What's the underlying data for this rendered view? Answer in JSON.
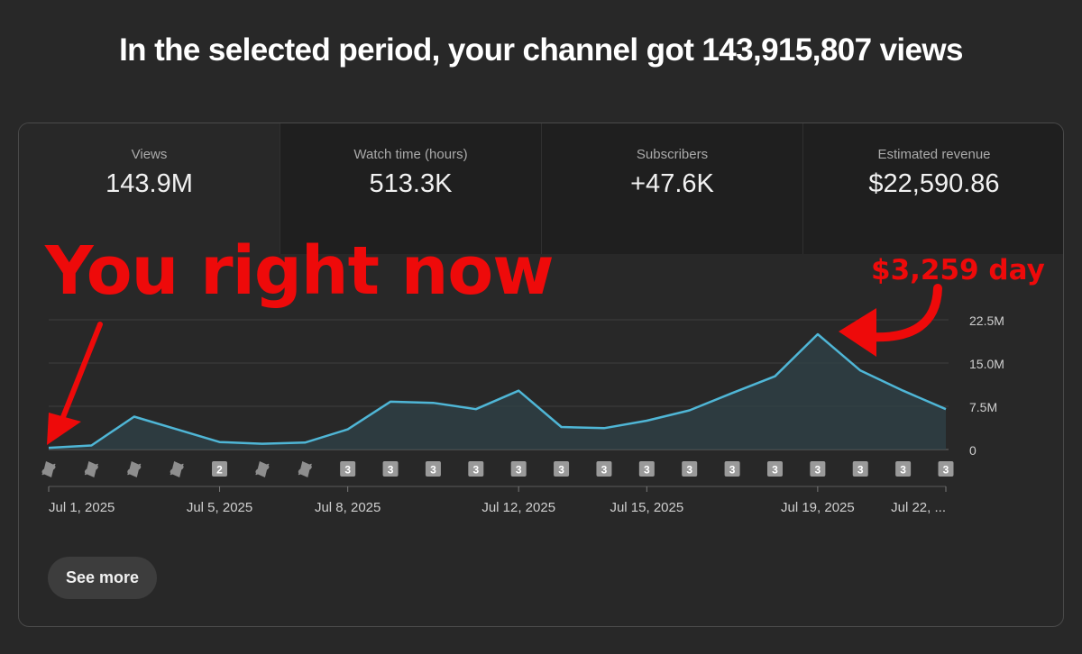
{
  "headline": "In the selected period, your channel got 143,915,807 views",
  "metrics": [
    {
      "label": "Views",
      "value": "143.9M"
    },
    {
      "label": "Watch time (hours)",
      "value": "513.3K"
    },
    {
      "label": "Subscribers",
      "value": "+47.6K"
    },
    {
      "label": "Estimated revenue",
      "value": "$22,590.86"
    }
  ],
  "annotations": {
    "left": "You right now",
    "right": "$3,259 day"
  },
  "see_more": "See more",
  "colors": {
    "line": "#4fb6d6",
    "annotation": "#ee0a0a"
  },
  "chart_data": {
    "type": "area",
    "x": [
      "Jul 1, 2025",
      "Jul 2, 2025",
      "Jul 3, 2025",
      "Jul 4, 2025",
      "Jul 5, 2025",
      "Jul 6, 2025",
      "Jul 7, 2025",
      "Jul 8, 2025",
      "Jul 9, 2025",
      "Jul 10, 2025",
      "Jul 11, 2025",
      "Jul 12, 2025",
      "Jul 13, 2025",
      "Jul 14, 2025",
      "Jul 15, 2025",
      "Jul 16, 2025",
      "Jul 17, 2025",
      "Jul 18, 2025",
      "Jul 19, 2025",
      "Jul 20, 2025",
      "Jul 21, 2025",
      "Jul 22, 2025"
    ],
    "series": [
      {
        "values": [
          0.3,
          0.7,
          5.7,
          3.5,
          1.3,
          1.0,
          1.2,
          3.5,
          8.3,
          8.1,
          7.0,
          10.2,
          3.9,
          3.7,
          5.0,
          6.8,
          9.8,
          12.7,
          20.0,
          13.7,
          10.2,
          7.0
        ]
      }
    ],
    "yticks": [
      "22.5M",
      "15.0M",
      "7.5M",
      "0"
    ],
    "ytick_values": [
      22.5,
      15,
      7.5,
      0
    ],
    "ylim": [
      0,
      22.5
    ],
    "xticks": [
      {
        "index": 0,
        "label": "Jul 1, 2025"
      },
      {
        "index": 4,
        "label": "Jul 5, 2025"
      },
      {
        "index": 7,
        "label": "Jul 8, 2025"
      },
      {
        "index": 11,
        "label": "Jul 12, 2025"
      },
      {
        "index": 14,
        "label": "Jul 15, 2025"
      },
      {
        "index": 18,
        "label": "Jul 19, 2025"
      },
      {
        "index": 21,
        "label": "Jul 22, ..."
      }
    ],
    "upload_markers": [
      "shorts",
      "shorts",
      "shorts",
      "shorts",
      "2",
      "shorts",
      "shorts",
      "3",
      "3",
      "3",
      "3",
      "3",
      "3",
      "3",
      "3",
      "3",
      "3",
      "3",
      "3",
      "3",
      "3",
      "3"
    ],
    "grid": true
  }
}
